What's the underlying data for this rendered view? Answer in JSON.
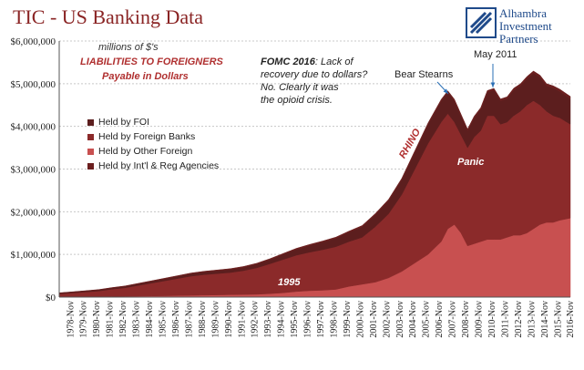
{
  "header": {
    "title": "TIC - US Banking Data",
    "brand_lines": [
      "Alhambra",
      "Investment",
      "Partners"
    ]
  },
  "annotations": {
    "units": "millions of $'s",
    "liabilities": "LIABILITIES TO FOREIGNERS",
    "payable": "Payable in Dollars",
    "fomc_bold": "FOMC 2016",
    "fomc_rest": ": Lack of",
    "fomc_lines": [
      "recovery due to dollars?",
      "No. Clearly it was",
      "the opioid crisis."
    ],
    "bear_stearns": "Bear Stearns",
    "may_2011": "May 2011",
    "rhino": "RHINO",
    "panic": "Panic",
    "y1995": "1995"
  },
  "colors": {
    "foi": "#5c1e1e",
    "foreign_banks": "#8b2a2a",
    "other_foreign": "#c85050",
    "intl_agencies": "#6b1f1f",
    "title": "#8a2424",
    "brand": "#1f4a8a",
    "accent_text": "#b03030"
  },
  "chart_data": {
    "type": "area",
    "stacked": true,
    "title": "TIC - US Banking Data",
    "ylabel": "",
    "xlabel": "",
    "ylim": [
      0,
      6000000
    ],
    "yticks": [
      0,
      1000000,
      2000000,
      3000000,
      4000000,
      5000000,
      6000000
    ],
    "ytick_labels": [
      "$0",
      "$1,000,000",
      "$2,000,000",
      "$3,000,000",
      "$4,000,000",
      "$5,000,000",
      "$6,000,000"
    ],
    "xtick_labels": [
      "1978-Nov",
      "1979-Nov",
      "1980-Nov",
      "1981-Nov",
      "1982-Nov",
      "1983-Nov",
      "1984-Nov",
      "1985-Nov",
      "1986-Nov",
      "1987-Nov",
      "1988-Nov",
      "1989-Nov",
      "1990-Nov",
      "1991-Nov",
      "1992-Nov",
      "1993-Nov",
      "1994-Nov",
      "1995-Nov",
      "1996-Nov",
      "1997-Nov",
      "1998-Nov",
      "1999-Nov",
      "2000-Nov",
      "2001-Nov",
      "2002-Nov",
      "2003-Nov",
      "2004-Nov",
      "2005-Nov",
      "2006-Nov",
      "2007-Nov",
      "2008-Nov",
      "2009-Nov",
      "2010-Nov",
      "2011-Nov",
      "2012-Nov",
      "2013-Nov",
      "2014-Nov",
      "2015-Nov",
      "2016-Nov"
    ],
    "grid": true,
    "legend_position": "left",
    "x": [
      1978,
      1979,
      1980,
      1981,
      1982,
      1983,
      1984,
      1985,
      1986,
      1987,
      1988,
      1989,
      1990,
      1991,
      1992,
      1993,
      1994,
      1995,
      1996,
      1997,
      1998,
      1999,
      2000,
      2001,
      2002,
      2003,
      2004,
      2005,
      2006,
      2007,
      2007.5,
      2008,
      2008.5,
      2009,
      2009.5,
      2010,
      2010.5,
      2011,
      2011.5,
      2012,
      2012.5,
      2013,
      2013.5,
      2014,
      2014.5,
      2015,
      2015.5,
      2016,
      2016.8
    ],
    "series": [
      {
        "name": "Held by Other Foreign",
        "color": "#c85050",
        "values": [
          5000,
          7000,
          9000,
          12000,
          15000,
          18000,
          22000,
          26000,
          30000,
          35000,
          40000,
          45000,
          50000,
          55000,
          60000,
          65000,
          80000,
          100000,
          130000,
          150000,
          160000,
          180000,
          250000,
          300000,
          350000,
          450000,
          600000,
          800000,
          1000000,
          1300000,
          1600000,
          1700000,
          1500000,
          1200000,
          1250000,
          1300000,
          1350000,
          1350000,
          1350000,
          1400000,
          1450000,
          1450000,
          1500000,
          1600000,
          1700000,
          1750000,
          1750000,
          1800000,
          1850000
        ]
      },
      {
        "name": "Held by Foreign Banks",
        "color": "#8b2a2a",
        "values": [
          70000,
          90000,
          110000,
          130000,
          170000,
          200000,
          250000,
          300000,
          350000,
          400000,
          450000,
          480000,
          500000,
          520000,
          560000,
          620000,
          700000,
          780000,
          850000,
          900000,
          950000,
          1000000,
          1050000,
          1100000,
          1300000,
          1500000,
          1800000,
          2200000,
          2600000,
          2800000,
          2700000,
          2400000,
          2300000,
          2300000,
          2500000,
          2600000,
          2900000,
          2900000,
          2700000,
          2700000,
          2800000,
          2900000,
          3000000,
          3000000,
          2800000,
          2600000,
          2500000,
          2400000,
          2200000
        ]
      },
      {
        "name": "Held by FOI",
        "color": "#5c1e1e",
        "values": [
          20000,
          22000,
          25000,
          28000,
          30000,
          35000,
          40000,
          45000,
          50000,
          55000,
          60000,
          65000,
          70000,
          75000,
          80000,
          90000,
          100000,
          120000,
          140000,
          160000,
          180000,
          200000,
          220000,
          250000,
          280000,
          310000,
          350000,
          400000,
          450000,
          500000,
          500000,
          500000,
          450000,
          400000,
          450000,
          500000,
          550000,
          600000,
          550000,
          550000,
          600000,
          600000,
          620000,
          650000,
          650000,
          600000,
          650000,
          620000,
          600000
        ]
      },
      {
        "name": "Held by Int'l & Reg Agencies",
        "color": "#6b1f1f",
        "values": [
          5000,
          5000,
          6000,
          7000,
          8000,
          9000,
          10000,
          11000,
          12000,
          13000,
          14000,
          15000,
          16000,
          17000,
          18000,
          19000,
          20000,
          21000,
          22000,
          23000,
          24000,
          25000,
          26000,
          27000,
          28000,
          29000,
          30000,
          31000,
          32000,
          33000,
          34000,
          35000,
          36000,
          37000,
          38000,
          39000,
          40000,
          41000,
          42000,
          43000,
          44000,
          45000,
          46000,
          47000,
          48000,
          49000,
          50000,
          51000,
          52000
        ]
      }
    ],
    "legend_order": [
      "Held by FOI",
      "Held by Foreign Banks",
      "Held by Other Foreign",
      "Held by Int'l & Reg Agencies"
    ]
  }
}
